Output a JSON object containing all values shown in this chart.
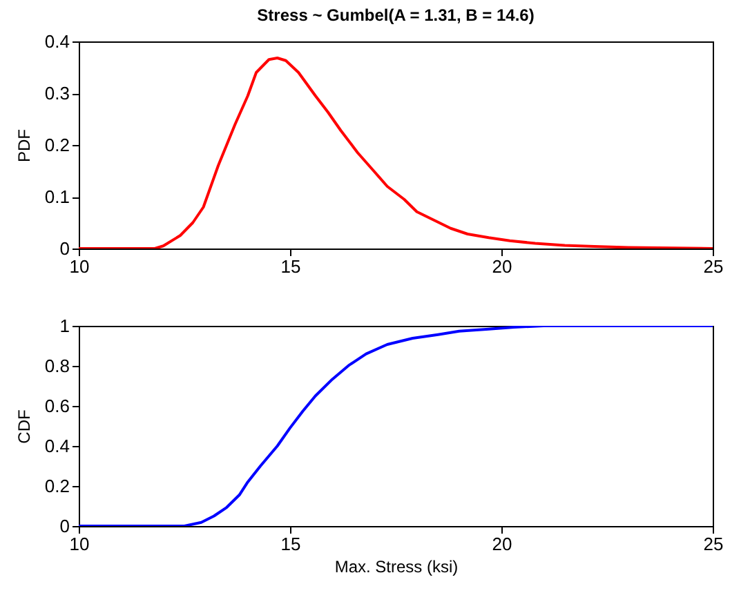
{
  "chart_data": [
    {
      "type": "line",
      "title": "Stress ~ Gumbel(A = 1.31, B = 14.6)",
      "ylabel": "PDF",
      "x": [
        10,
        11.8,
        12.0,
        12.4,
        12.7,
        12.95,
        13.3,
        13.7,
        14.0,
        14.2,
        14.5,
        14.7,
        14.9,
        15.2,
        15.6,
        15.9,
        16.2,
        16.6,
        17.0,
        17.3,
        17.7,
        18.0,
        18.4,
        18.8,
        19.2,
        19.7,
        20.2,
        20.8,
        21.5,
        22.2,
        23.0,
        25
      ],
      "series": [
        {
          "color": "#ff0000",
          "values": [
            0,
            0,
            0.005,
            0.025,
            0.05,
            0.08,
            0.16,
            0.24,
            0.295,
            0.34,
            0.365,
            0.368,
            0.363,
            0.34,
            0.295,
            0.263,
            0.228,
            0.185,
            0.148,
            0.12,
            0.095,
            0.071,
            0.055,
            0.039,
            0.028,
            0.021,
            0.015,
            0.01,
            0.006,
            0.004,
            0.002,
            0
          ]
        }
      ],
      "xlim": [
        10,
        25
      ],
      "xticks": [
        10,
        15,
        20,
        25
      ],
      "ylim": [
        0,
        0.4
      ],
      "yticks": [
        0,
        0.1,
        0.2,
        0.3,
        0.4
      ]
    },
    {
      "type": "line",
      "xlabel": "Max. Stress (ksi)",
      "ylabel": "CDF",
      "x": [
        10,
        12.5,
        12.9,
        13.2,
        13.5,
        13.8,
        14.0,
        14.3,
        14.7,
        15.0,
        15.3,
        15.6,
        16.0,
        16.4,
        16.8,
        17.3,
        17.9,
        18.5,
        19.0,
        19.7,
        20.3,
        21.0,
        25
      ],
      "series": [
        {
          "color": "#0000ff",
          "values": [
            0,
            0,
            0.018,
            0.05,
            0.093,
            0.155,
            0.22,
            0.3,
            0.4,
            0.49,
            0.573,
            0.65,
            0.733,
            0.804,
            0.86,
            0.907,
            0.938,
            0.956,
            0.973,
            0.984,
            0.993,
            1,
            1
          ]
        }
      ],
      "xlim": [
        10,
        25
      ],
      "xticks": [
        10,
        15,
        20,
        25
      ],
      "ylim": [
        0,
        1
      ],
      "yticks": [
        0,
        0.2,
        0.4,
        0.6,
        0.8,
        1
      ]
    }
  ]
}
